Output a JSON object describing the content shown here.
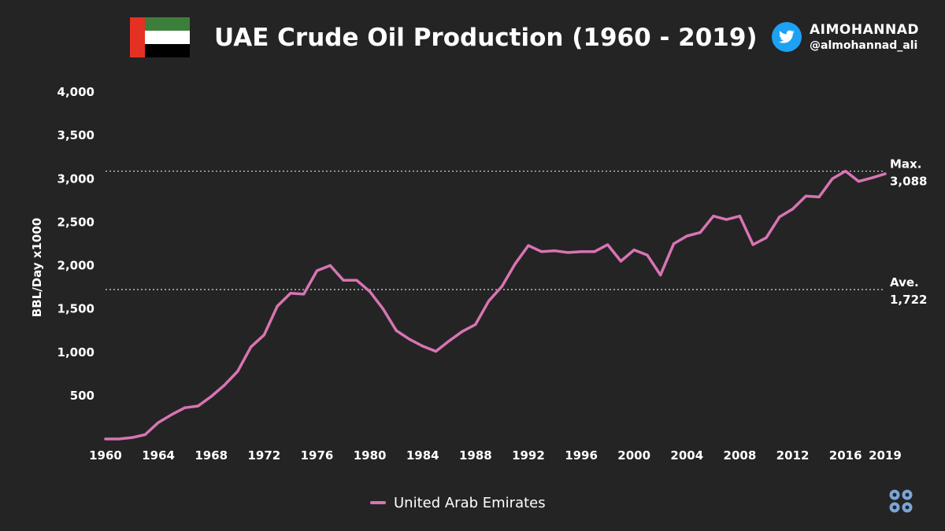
{
  "header": {
    "title": "UAE Crude Oil Production (1960 - 2019)",
    "handle_name": "AIMOHANNAD",
    "handle_id": "@almohannad_ali",
    "flag_colors": {
      "red": "#e53124",
      "green": "#3c7f3a",
      "white": "#ffffff",
      "black": "#000000"
    },
    "twitter_color": "#1da1f2"
  },
  "chart_data": {
    "type": "line",
    "title": "UAE Crude Oil Production (1960 - 2019)",
    "xlabel": "",
    "ylabel": "BBL/Day x1000",
    "xlim": [
      1960,
      2019
    ],
    "ylim": [
      0,
      4000
    ],
    "y_ticks": [
      500,
      1000,
      1500,
      2000,
      2500,
      3000,
      3500,
      4000
    ],
    "y_tick_labels": [
      "500",
      "1,000",
      "1,500",
      "2,000",
      "2,500",
      "3,000",
      "3,500",
      "4,000"
    ],
    "x_ticks": [
      1960,
      1964,
      1968,
      1972,
      1976,
      1980,
      1984,
      1988,
      1992,
      1996,
      2000,
      2004,
      2008,
      2012,
      2016,
      2019
    ],
    "x_tick_labels": [
      "1960",
      "1964",
      "1968",
      "1972",
      "1976",
      "1980",
      "1984",
      "1988",
      "1992",
      "1996",
      "2000",
      "2004",
      "2008",
      "2012",
      "2016",
      "2019"
    ],
    "series": [
      {
        "name": "United Arab Emirates",
        "color": "#d874b3",
        "x": [
          1960,
          1961,
          1962,
          1963,
          1964,
          1965,
          1966,
          1967,
          1968,
          1969,
          1970,
          1971,
          1972,
          1973,
          1974,
          1975,
          1976,
          1977,
          1978,
          1979,
          1980,
          1981,
          1982,
          1983,
          1984,
          1985,
          1986,
          1987,
          1988,
          1989,
          1990,
          1991,
          1992,
          1993,
          1994,
          1995,
          1996,
          1997,
          1998,
          1999,
          2000,
          2001,
          2002,
          2003,
          2004,
          2005,
          2006,
          2007,
          2008,
          2009,
          2010,
          2011,
          2012,
          2013,
          2014,
          2015,
          2016,
          2017,
          2018,
          2019
        ],
        "values": [
          0,
          0,
          15,
          50,
          190,
          280,
          360,
          380,
          490,
          620,
          780,
          1060,
          1200,
          1530,
          1680,
          1670,
          1940,
          2000,
          1830,
          1830,
          1700,
          1500,
          1250,
          1150,
          1070,
          1010,
          1130,
          1240,
          1320,
          1590,
          1760,
          2020,
          2230,
          2160,
          2170,
          2150,
          2160,
          2160,
          2240,
          2050,
          2180,
          2120,
          1890,
          2250,
          2340,
          2380,
          2570,
          2530,
          2570,
          2240,
          2320,
          2560,
          2650,
          2800,
          2790,
          3000,
          3088,
          2970,
          3010,
          3058
        ]
      }
    ],
    "reference_lines": [
      {
        "label": "Max.",
        "value": 3088,
        "value_label": "3,088"
      },
      {
        "label": "Ave.",
        "value": 1722,
        "value_label": "1,722"
      }
    ],
    "legend": {
      "position": "bottom-center",
      "entries": [
        "United Arab Emirates"
      ]
    },
    "grid": false
  },
  "footer": {
    "logo_icon": "opec-logo-icon",
    "logo_color": "#7aa6d8"
  }
}
